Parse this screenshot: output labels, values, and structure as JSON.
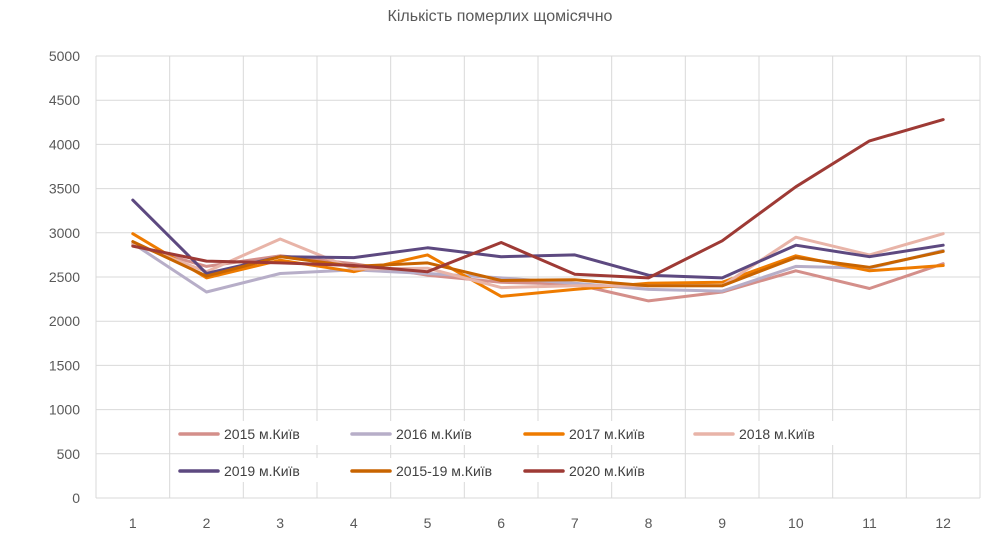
{
  "chart_data": {
    "type": "line",
    "title": "Кількість померлих щомісячно",
    "xlabel": "",
    "ylabel": "",
    "categories": [
      "1",
      "2",
      "3",
      "4",
      "5",
      "6",
      "7",
      "8",
      "9",
      "10",
      "11",
      "12"
    ],
    "ylim": [
      0,
      5000
    ],
    "yticks": [
      0,
      500,
      1000,
      1500,
      2000,
      2500,
      3000,
      3500,
      4000,
      4500,
      5000
    ],
    "grid": true,
    "legend_position": "bottom-inside",
    "series": [
      {
        "name": "2015 м.Київ",
        "color": "#d48f8a",
        "values": [
          2860,
          2620,
          2740,
          2650,
          2520,
          2440,
          2420,
          2230,
          2330,
          2570,
          2370,
          2650
        ]
      },
      {
        "name": "2016 м.Київ",
        "color": "#b7aec8",
        "values": [
          2880,
          2330,
          2540,
          2580,
          2540,
          2490,
          2430,
          2360,
          2340,
          2620,
          2600,
          2800
        ]
      },
      {
        "name": "2017 м.Київ",
        "color": "#ee7b00",
        "values": [
          2990,
          2490,
          2690,
          2560,
          2750,
          2280,
          2360,
          2430,
          2440,
          2740,
          2570,
          2630
        ]
      },
      {
        "name": "2018 м.Київ",
        "color": "#e8b4a8",
        "values": [
          2880,
          2560,
          2930,
          2590,
          2600,
          2380,
          2400,
          2400,
          2400,
          2950,
          2750,
          2990
        ]
      },
      {
        "name": "2019 м.Київ",
        "color": "#5d4980",
        "values": [
          3370,
          2540,
          2730,
          2720,
          2830,
          2730,
          2750,
          2520,
          2490,
          2860,
          2730,
          2860
        ]
      },
      {
        "name": "2015-19 м.Київ",
        "color": "#c86400",
        "values": [
          2900,
          2510,
          2730,
          2620,
          2660,
          2460,
          2470,
          2400,
          2400,
          2720,
          2610,
          2790
        ]
      },
      {
        "name": "2020 м.Київ",
        "color": "#9e3a35",
        "values": [
          2850,
          2680,
          2660,
          2630,
          2560,
          2890,
          2530,
          2490,
          2910,
          3520,
          4040,
          4280
        ]
      }
    ]
  }
}
